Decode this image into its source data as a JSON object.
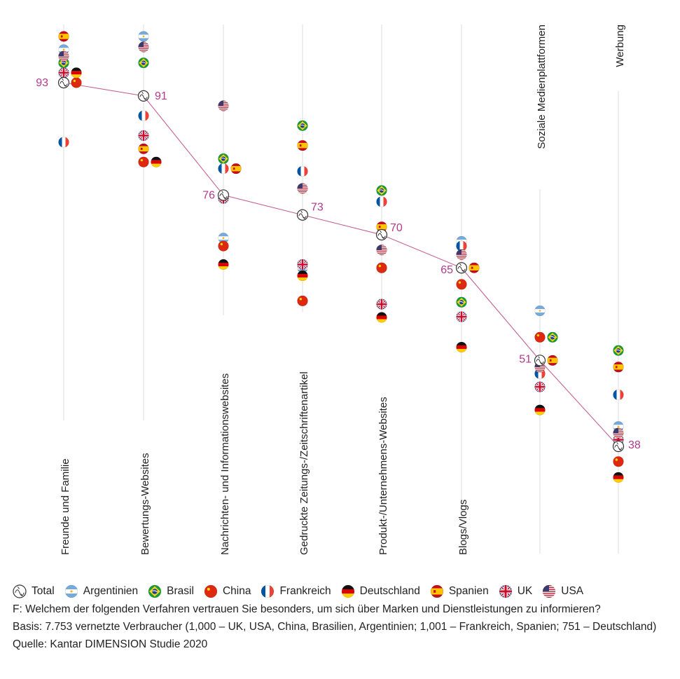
{
  "chart_data": {
    "type": "scatter",
    "ylim": [
      30,
      100
    ],
    "categories": [
      "Freunde und Familie",
      "Bewertungs-Websites",
      "Nachrichten- und Informationswebsites",
      "Gedruckte Zeitungs-/Zeitschriftenartikel",
      "Produkt-/Unternehmens-Websites",
      "Blogs/Vlogs",
      "Soziale Medienplattformen",
      "Werbung"
    ],
    "total": {
      "name": "Total",
      "values": [
        93,
        91,
        76,
        73,
        70,
        65,
        51,
        38
      ],
      "labels": [
        "93",
        "91",
        "76",
        "73",
        "70",
        "65",
        "51",
        "38"
      ]
    },
    "series": [
      {
        "name": "Argentinien",
        "key": "ar",
        "values": [
          98,
          100,
          69.5,
          65,
          65,
          69,
          58.5,
          41
        ]
      },
      {
        "name": "Brasil",
        "key": "br",
        "values": [
          96,
          96,
          81.5,
          86.5,
          76.7,
          59.8,
          54.5,
          52.5
        ]
      },
      {
        "name": "China",
        "key": "cn",
        "values": [
          93,
          81,
          68.3,
          60,
          65,
          62.5,
          54.5,
          35.7
        ]
      },
      {
        "name": "Frankreich",
        "key": "fr",
        "values": [
          84,
          88,
          80,
          79.6,
          75,
          68.3,
          49,
          45.8
        ]
      },
      {
        "name": "Deutschland",
        "key": "de",
        "values": [
          94.5,
          81,
          65.5,
          63.8,
          57.5,
          53,
          43.5,
          33.3
        ]
      },
      {
        "name": "Spanien",
        "key": "es",
        "values": [
          100,
          83,
          80,
          83.5,
          71.2,
          65,
          51,
          50
        ]
      },
      {
        "name": "UK",
        "key": "uk",
        "values": [
          94.5,
          85,
          75.5,
          65.5,
          59.5,
          57.6,
          47,
          39
        ]
      },
      {
        "name": "USA",
        "key": "us",
        "values": [
          97,
          98.4,
          89.5,
          77,
          67.7,
          67,
          50,
          40
        ]
      }
    ]
  },
  "legend": {
    "items": [
      {
        "key": "total",
        "label": "Total"
      },
      {
        "key": "ar",
        "label": "Argentinien"
      },
      {
        "key": "br",
        "label": "Brasil"
      },
      {
        "key": "cn",
        "label": "China"
      },
      {
        "key": "fr",
        "label": "Frankreich"
      },
      {
        "key": "de",
        "label": "Deutschland"
      },
      {
        "key": "es",
        "label": "Spanien"
      },
      {
        "key": "uk",
        "label": "UK"
      },
      {
        "key": "us",
        "label": "USA"
      }
    ]
  },
  "notes": {
    "question": "F: Welchem der folgenden Verfahren vertrauen Sie besonders, um sich über Marken und Dienstleistungen zu informieren?",
    "basis": "Basis: 7.753 vernetzte Verbraucher (1,000 – UK, USA, China, Brasilien, Argentinien; 1,001 – Frankreich, Spanien; 751 – Deutschland)",
    "source": "Quelle: Kantar DIMENSION Studie 2020"
  },
  "colors": {
    "accent": "#b03a8c",
    "line": "#c56296",
    "axis": "#dddddd"
  }
}
